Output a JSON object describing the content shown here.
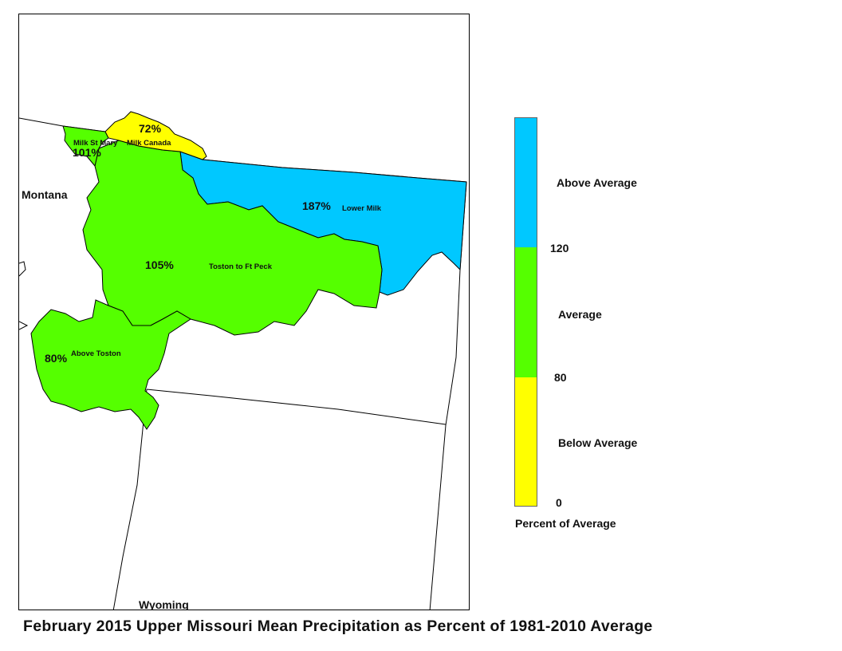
{
  "title": "February 2015 Upper Missouri Mean Precipitation as Percent of 1981-2010 Average",
  "states": {
    "montana": "Montana",
    "wyoming": "Wyoming"
  },
  "basins": [
    {
      "id": "lower-milk",
      "name": "Lower Milk",
      "percent_label": "187%",
      "value": 187,
      "category": "above"
    },
    {
      "id": "toston-to-ft-peck",
      "name": "Toston to Ft Peck",
      "percent_label": "105%",
      "value": 105,
      "category": "average"
    },
    {
      "id": "above-toston",
      "name": "Above Toston",
      "percent_label": "80%",
      "value": 80,
      "category": "average"
    },
    {
      "id": "milk-st-mary",
      "name": "Milk St Mary",
      "percent_label": "101%",
      "value": 101,
      "category": "average"
    },
    {
      "id": "milk-canada",
      "name": "Milk Canada",
      "percent_label": "72%",
      "value": 72,
      "category": "below"
    }
  ],
  "legend": {
    "title": "Percent of Average",
    "categories": [
      {
        "label": "Above Average",
        "color": "#00c8ff"
      },
      {
        "label": "Average",
        "color": "#55ff00"
      },
      {
        "label": "Below Average",
        "color": "#ffff00"
      }
    ],
    "breaks": [
      "120",
      "80",
      "0"
    ]
  },
  "colors": {
    "above": "#00c8ff",
    "average": "#55ff00",
    "below": "#ffff00",
    "outline": "#000000"
  }
}
